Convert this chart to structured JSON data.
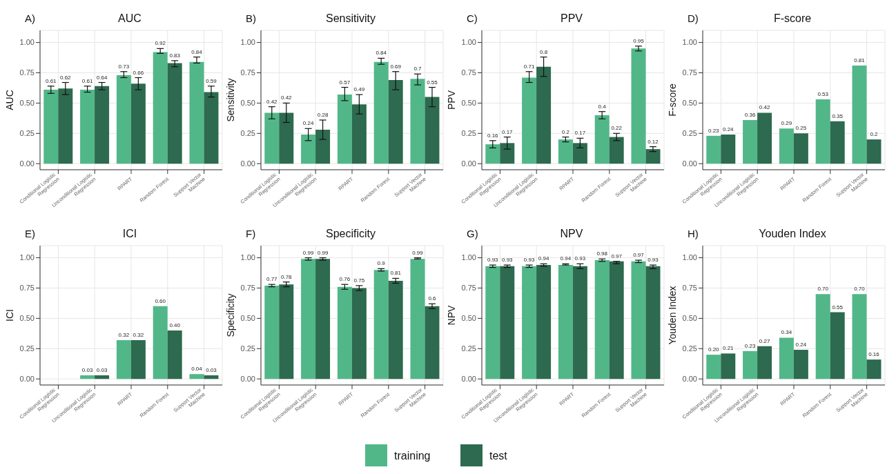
{
  "chart_data": [
    {
      "type": "bar",
      "title": "AUC",
      "annotations": [
        "A)"
      ],
      "ylabel": "AUC",
      "categories": [
        "Conditional Logistic Regression",
        "Unconditional Logistic Regression",
        "RPART",
        "Random Forest",
        "Support Vector Machine"
      ],
      "ylim": [
        -0.05,
        1.1
      ],
      "yticks": [
        {
          "value": 0,
          "label": "0.00"
        },
        {
          "value": 0.25,
          "label": "0.25"
        },
        {
          "value": 0.5,
          "label": "0.50"
        },
        {
          "value": 0.75,
          "label": "0.75"
        },
        {
          "value": 1,
          "label": "1.00"
        }
      ],
      "grid": true,
      "legend": "bottom",
      "series": [
        {
          "name": "training",
          "color": "#52b788",
          "values": [
            0.61,
            0.61,
            0.73,
            0.92,
            0.84
          ],
          "errors": [
            [
              0.58,
              0.64
            ],
            [
              0.59,
              0.64
            ],
            [
              0.71,
              0.76
            ],
            [
              0.91,
              0.95
            ],
            [
              0.83,
              0.88
            ]
          ],
          "value_labels": [
            "0.61",
            "0.61",
            "0.73",
            "0.92",
            "0.84"
          ]
        },
        {
          "name": "test",
          "color": "#2d6a4f",
          "values": [
            0.62,
            0.64,
            0.66,
            0.83,
            0.59
          ],
          "errors": [
            [
              0.57,
              0.67
            ],
            [
              0.61,
              0.67
            ],
            [
              0.61,
              0.71
            ],
            [
              0.8,
              0.85
            ],
            [
              0.55,
              0.64
            ]
          ],
          "value_labels": [
            "0.62",
            "0.64",
            "0.66",
            "0.83",
            "0.59"
          ]
        }
      ]
    },
    {
      "type": "bar",
      "title": "Sensitivity",
      "annotations": [
        "B)"
      ],
      "ylabel": "Sensitivity",
      "categories": [
        "Conditional Logistic Regression",
        "Unconditional Logistic Regression",
        "RPART",
        "Random Forest",
        "Support Vector Machine"
      ],
      "ylim": [
        -0.05,
        1.1
      ],
      "yticks": [
        {
          "value": 0,
          "label": "0.00"
        },
        {
          "value": 0.25,
          "label": "0.25"
        },
        {
          "value": 0.5,
          "label": "0.50"
        },
        {
          "value": 0.75,
          "label": "0.75"
        },
        {
          "value": 1,
          "label": "1.00"
        }
      ],
      "grid": true,
      "series": [
        {
          "color": "#52b788",
          "values": [
            0.42,
            0.24,
            0.57,
            0.84,
            0.7
          ],
          "errors": [
            [
              0.37,
              0.47
            ],
            [
              0.19,
              0.29
            ],
            [
              0.52,
              0.63
            ],
            [
              0.82,
              0.87
            ],
            [
              0.65,
              0.74
            ]
          ],
          "value_labels": [
            "0.42",
            "0.24",
            "0.57",
            "0.84",
            "0.7"
          ]
        },
        {
          "color": "#2d6a4f",
          "values": [
            0.42,
            0.28,
            0.49,
            0.69,
            0.55
          ],
          "errors": [
            [
              0.34,
              0.5
            ],
            [
              0.2,
              0.36
            ],
            [
              0.41,
              0.57
            ],
            [
              0.61,
              0.76
            ],
            [
              0.47,
              0.63
            ]
          ],
          "value_labels": [
            "0.42",
            "0.28",
            "0.49",
            "0.69",
            "0.55"
          ]
        }
      ]
    },
    {
      "type": "bar",
      "title": "PPV",
      "annotations": [
        "C)"
      ],
      "ylabel": "PPV",
      "categories": [
        "Conditional Logistic Regression",
        "Unconditional Logistic Regression",
        "RPART",
        "Random Forest",
        "Support Vector Machine"
      ],
      "ylim": [
        -0.05,
        1.1
      ],
      "yticks": [
        {
          "value": 0,
          "label": "0.00"
        },
        {
          "value": 0.25,
          "label": "0.25"
        },
        {
          "value": 0.5,
          "label": "0.50"
        },
        {
          "value": 0.75,
          "label": "0.75"
        },
        {
          "value": 1,
          "label": "1.00"
        }
      ],
      "grid": true,
      "series": [
        {
          "color": "#52b788",
          "values": [
            0.16,
            0.71,
            0.2,
            0.4,
            0.95
          ],
          "errors": [
            [
              0.13,
              0.19
            ],
            [
              0.67,
              0.76
            ],
            [
              0.18,
              0.22
            ],
            [
              0.37,
              0.43
            ],
            [
              0.93,
              0.97
            ]
          ],
          "value_labels": [
            "0.16",
            "0.71",
            "0.2",
            "0.4",
            "0.95"
          ]
        },
        {
          "color": "#2d6a4f",
          "values": [
            0.17,
            0.8,
            0.17,
            0.22,
            0.12
          ],
          "errors": [
            [
              0.12,
              0.22
            ],
            [
              0.72,
              0.88
            ],
            [
              0.13,
              0.21
            ],
            [
              0.19,
              0.25
            ],
            [
              0.1,
              0.14
            ]
          ],
          "value_labels": [
            "0.17",
            "0.8",
            "0.17",
            "0.22",
            "0.12"
          ]
        }
      ]
    },
    {
      "type": "bar",
      "title": "F-score",
      "annotations": [
        "D)"
      ],
      "ylabel": "F-score",
      "categories": [
        "Conditional Logistic Regression",
        "Unconditional Logistic Regression",
        "RPART",
        "Random Forest",
        "Support Vector Machine"
      ],
      "ylim": [
        -0.05,
        1.1
      ],
      "yticks": [
        {
          "value": 0,
          "label": "0.00"
        },
        {
          "value": 0.25,
          "label": "0.25"
        },
        {
          "value": 0.5,
          "label": "0.50"
        },
        {
          "value": 0.75,
          "label": "0.75"
        },
        {
          "value": 1,
          "label": "1.00"
        }
      ],
      "grid": true,
      "series": [
        {
          "color": "#52b788",
          "values": [
            0.23,
            0.36,
            0.29,
            0.53,
            0.81
          ],
          "value_labels": [
            "0.23",
            "0.36",
            "0.29",
            "0.53",
            "0.81"
          ]
        },
        {
          "color": "#2d6a4f",
          "values": [
            0.24,
            0.42,
            0.25,
            0.35,
            0.2
          ],
          "value_labels": [
            "0.24",
            "0.42",
            "0.25",
            "0.35",
            "0.2"
          ]
        }
      ]
    },
    {
      "type": "bar",
      "title": "ICI",
      "annotations": [
        "E)"
      ],
      "ylabel": "ICI",
      "categories": [
        "Conditional Logistic Regression",
        "Unconditional Logistic Regression",
        "RPART",
        "Random Forest",
        "Support Vector Machine"
      ],
      "ylim": [
        -0.05,
        1.1
      ],
      "yticks": [
        {
          "value": 0,
          "label": "0.00"
        },
        {
          "value": 0.25,
          "label": "0.25"
        },
        {
          "value": 0.5,
          "label": "0.50"
        },
        {
          "value": 0.75,
          "label": "0.75"
        },
        {
          "value": 1,
          "label": "1.00"
        }
      ],
      "grid": true,
      "series": [
        {
          "color": "#52b788",
          "values": [
            null,
            0.03,
            0.32,
            0.6,
            0.04
          ],
          "value_labels": [
            null,
            "0.03",
            "0.32",
            "0.60",
            "0.04"
          ]
        },
        {
          "color": "#2d6a4f",
          "values": [
            null,
            0.03,
            0.32,
            0.4,
            0.03
          ],
          "value_labels": [
            null,
            "0.03",
            "0.32",
            "0.40",
            "0.03"
          ]
        }
      ]
    },
    {
      "type": "bar",
      "title": "Specificity",
      "annotations": [
        "F)"
      ],
      "ylabel": "Specificity",
      "categories": [
        "Conditional Logistic Regression",
        "Unconditional Logistic Regression",
        "RPART",
        "Random Forest",
        "Support Vector Machine"
      ],
      "ylim": [
        -0.05,
        1.1
      ],
      "yticks": [
        {
          "value": 0,
          "label": "0.00"
        },
        {
          "value": 0.25,
          "label": "0.25"
        },
        {
          "value": 0.5,
          "label": "0.50"
        },
        {
          "value": 0.75,
          "label": "0.75"
        },
        {
          "value": 1,
          "label": "1.00"
        }
      ],
      "grid": true,
      "series": [
        {
          "color": "#52b788",
          "values": [
            0.77,
            0.99,
            0.76,
            0.9,
            0.99
          ],
          "errors": [
            [
              0.76,
              0.78
            ],
            [
              0.98,
              1.0
            ],
            [
              0.74,
              0.78
            ],
            [
              0.89,
              0.91
            ],
            [
              0.99,
              1.0
            ]
          ],
          "value_labels": [
            "0.77",
            "0.99",
            "0.76",
            "0.9",
            "0.99"
          ]
        },
        {
          "color": "#2d6a4f",
          "values": [
            0.78,
            0.99,
            0.75,
            0.81,
            0.6
          ],
          "errors": [
            [
              0.76,
              0.8
            ],
            [
              0.98,
              1.0
            ],
            [
              0.73,
              0.77
            ],
            [
              0.79,
              0.83
            ],
            [
              0.58,
              0.62
            ]
          ],
          "value_labels": [
            "0.78",
            "0.99",
            "0.75",
            "0.81",
            "0.6"
          ]
        }
      ]
    },
    {
      "type": "bar",
      "title": "NPV",
      "annotations": [
        "G)"
      ],
      "ylabel": "NPV",
      "categories": [
        "Conditional Logistic Regression",
        "Unconditional Logistic Regression",
        "RPART",
        "Random Forest",
        "Support Vector Machine"
      ],
      "ylim": [
        -0.05,
        1.1
      ],
      "yticks": [
        {
          "value": 0,
          "label": "0.00"
        },
        {
          "value": 0.25,
          "label": "0.25"
        },
        {
          "value": 0.5,
          "label": "0.50"
        },
        {
          "value": 0.75,
          "label": "0.75"
        },
        {
          "value": 1,
          "label": "1.00"
        }
      ],
      "grid": true,
      "series": [
        {
          "color": "#52b788",
          "values": [
            0.93,
            0.93,
            0.94,
            0.98,
            0.97
          ],
          "errors": [
            [
              0.92,
              0.94
            ],
            [
              0.92,
              0.94
            ],
            [
              0.94,
              0.95
            ],
            [
              0.97,
              0.99
            ],
            [
              0.96,
              0.98
            ]
          ],
          "value_labels": [
            "0.93",
            "0.93",
            "0.94",
            "0.98",
            "0.97"
          ]
        },
        {
          "color": "#2d6a4f",
          "values": [
            0.93,
            0.94,
            0.93,
            0.97,
            0.93
          ],
          "errors": [
            [
              0.92,
              0.94
            ],
            [
              0.93,
              0.95
            ],
            [
              0.91,
              0.95
            ],
            [
              0.95,
              0.97
            ],
            [
              0.91,
              0.94
            ]
          ],
          "value_labels": [
            "0.93",
            "0.94",
            "0.93",
            "0.97",
            "0.93"
          ]
        }
      ]
    },
    {
      "type": "bar",
      "title": "Youden Index",
      "annotations": [
        "H)"
      ],
      "ylabel": "Youden Index",
      "categories": [
        "Conditional Logistic Regression",
        "Unconditional Logistic Regression",
        "RPART",
        "Random Forest",
        "Support Vector Machine"
      ],
      "ylim": [
        -0.05,
        1.1
      ],
      "yticks": [
        {
          "value": 0,
          "label": "0.00"
        },
        {
          "value": 0.25,
          "label": "0.25"
        },
        {
          "value": 0.5,
          "label": "0.50"
        },
        {
          "value": 0.75,
          "label": "0.75"
        },
        {
          "value": 1,
          "label": "1.00"
        }
      ],
      "grid": true,
      "series": [
        {
          "color": "#52b788",
          "values": [
            0.2,
            0.23,
            0.34,
            0.7,
            0.7
          ],
          "value_labels": [
            "0.20",
            "0.23",
            "0.34",
            "0.70",
            "0.70"
          ]
        },
        {
          "color": "#2d6a4f",
          "values": [
            0.21,
            0.27,
            0.24,
            0.55,
            0.16
          ],
          "value_labels": [
            "0.21",
            "0.27",
            "0.24",
            "0.55",
            "0.16"
          ]
        }
      ]
    }
  ]
}
